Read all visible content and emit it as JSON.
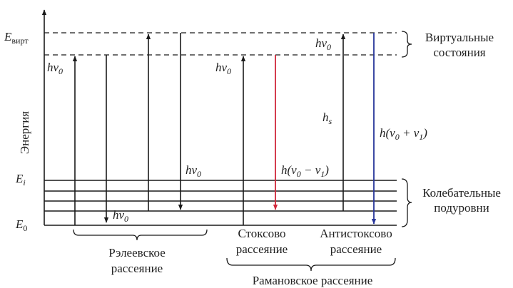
{
  "axis": {
    "ylabel": "Энергия",
    "e_virt": {
      "main": "E",
      "sub": "вирт"
    },
    "e_i": {
      "main": "E",
      "sub": "i"
    },
    "e_0": {
      "main": "E",
      "sub": "0"
    }
  },
  "labels": {
    "hv0": {
      "main": "hν",
      "sub": "0"
    },
    "hs": {
      "main": "h",
      "sub": "s"
    },
    "stokes_energy": {
      "pre": "h(ν",
      "sub1": "0",
      "mid": " − ν",
      "sub2": "1",
      "post": ")"
    },
    "antistokes_energy": {
      "pre": "h(ν",
      "sub1": "0",
      "mid": " + ν",
      "sub2": "1",
      "post": ")"
    }
  },
  "braces": {
    "virtual": {
      "line1": "Виртуальные",
      "line2": "состояния"
    },
    "vibrational": {
      "line1": "Колебательные",
      "line2": "подуровни"
    },
    "rayleigh": {
      "line1": "Рэлеевское",
      "line2": "рассеяние"
    },
    "stokes": {
      "line1": "Стоксово",
      "line2": "рассеяние"
    },
    "antistokes": {
      "line1": "Антистоксово",
      "line2": "рассеяние"
    },
    "raman": "Рамановское рассеяние"
  },
  "colors": {
    "line": "#1a1a1a",
    "stokes_arrow": "#d0263a",
    "antistokes_arrow": "#27359a"
  }
}
